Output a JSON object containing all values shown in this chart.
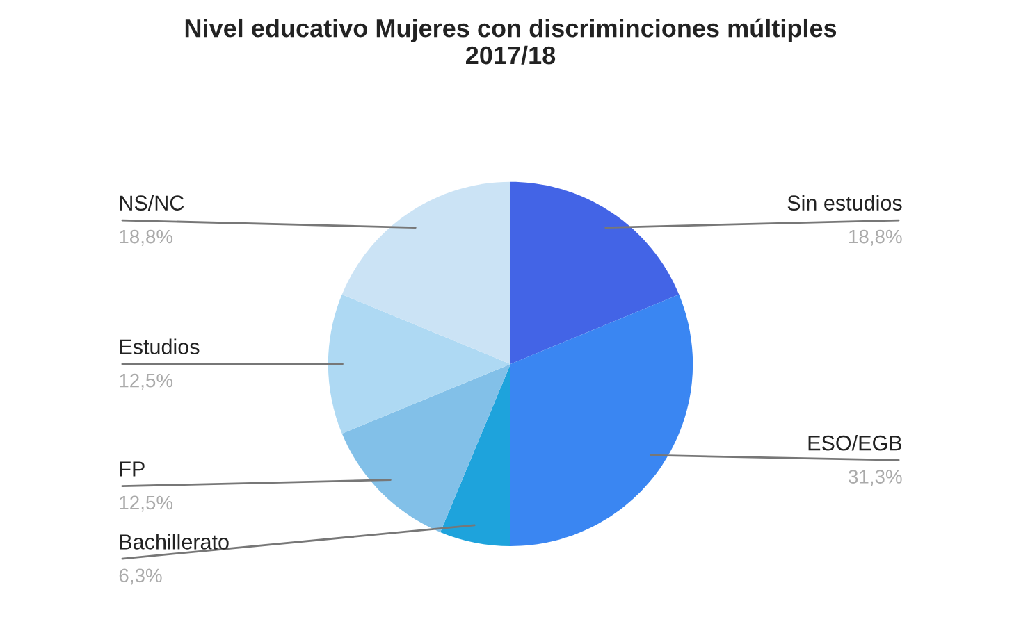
{
  "chart_data": {
    "type": "pie",
    "title": "Nivel educativo Mujeres con discriminciones múltiples\n2017/18",
    "categories": [
      "Sin estudios",
      "ESO/EGB",
      "Bachillerato",
      "FP",
      "Estudios",
      "NS/NC"
    ],
    "values": [
      18.8,
      31.3,
      6.3,
      12.5,
      12.5,
      18.8
    ],
    "value_labels": [
      "18,8%",
      "31,3%",
      "6,3%",
      "12,5%",
      "12,5%",
      "18,8%"
    ],
    "colors": [
      "#4364e6",
      "#3a86f2",
      "#1ea3dc",
      "#82c0e8",
      "#aed9f3",
      "#cbe3f5"
    ],
    "legend": false
  }
}
